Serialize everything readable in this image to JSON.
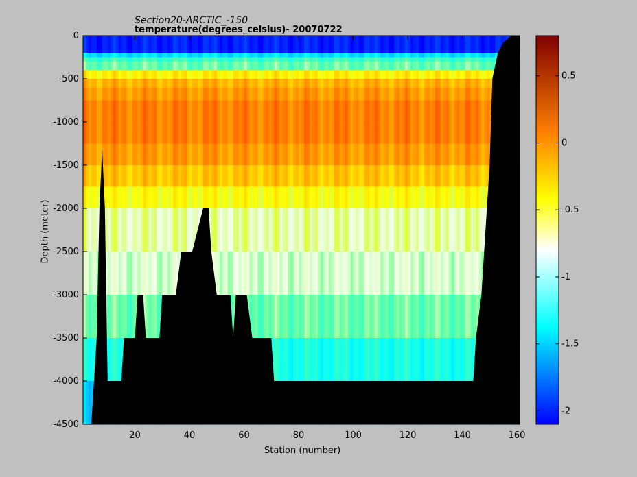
{
  "window": {
    "background": "#c0c0c0"
  },
  "chart_data": {
    "type": "heatmap",
    "title": "Section20-ARCTIC_-150",
    "subtitle": "temperature(degrees_celsius)- 20070722",
    "xlabel": "Station (number)",
    "ylabel": "Depth (meter)",
    "xlim": [
      1,
      161
    ],
    "ylim": [
      -4500,
      0
    ],
    "x_ticks": [
      "20",
      "40",
      "60",
      "80",
      "100",
      "120",
      "140",
      "160"
    ],
    "x_tick_values": [
      20,
      40,
      60,
      80,
      100,
      120,
      140,
      160
    ],
    "y_ticks": [
      "0",
      "-500",
      "-1000",
      "-1500",
      "-2000",
      "-2500",
      "-3000",
      "-3500",
      "-4000",
      "-4500"
    ],
    "y_tick_values": [
      0,
      -500,
      -1000,
      -1500,
      -2000,
      -2500,
      -3000,
      -3500,
      -4000,
      -4500
    ],
    "colorbar": {
      "colormap": "jet",
      "clim": [
        -2.1,
        0.8
      ],
      "ticks": [
        "-2",
        "-1.5",
        "-1",
        "-0.5",
        "0",
        "0.5"
      ],
      "tick_values": [
        -2,
        -1.5,
        -1,
        -0.5,
        0,
        0.5
      ]
    },
    "land_color": "#000000",
    "depth_levels": [
      0,
      100,
      200,
      250,
      300,
      400,
      500,
      600,
      750,
      1000,
      1250,
      1500,
      1750,
      2000,
      2500,
      3000,
      3500,
      4000,
      4500
    ],
    "bottom_profile": {
      "stations": [
        1,
        4,
        5,
        6,
        7,
        8,
        9,
        10,
        15,
        16,
        20,
        21,
        23,
        24,
        29,
        30,
        31,
        35,
        37,
        40,
        41,
        45,
        47,
        48,
        50,
        55,
        56,
        57,
        61,
        63,
        64,
        70,
        71,
        144,
        145,
        147,
        148,
        150,
        151,
        153,
        155,
        158,
        161
      ],
      "depths": [
        -4500,
        -4500,
        -4000,
        -3500,
        -2000,
        -1300,
        -2000,
        -4000,
        -4000,
        -3500,
        -3500,
        -3000,
        -3000,
        -3500,
        -3500,
        -3000,
        -3000,
        -3000,
        -2500,
        -2500,
        -2500,
        -2000,
        -2000,
        -2500,
        -3000,
        -3000,
        -3500,
        -3000,
        -3000,
        -3500,
        -3500,
        -3500,
        -4000,
        -4000,
        -3500,
        -3000,
        -2500,
        -1500,
        -500,
        -200,
        -80,
        0,
        0
      ]
    },
    "temperature_profile": {
      "depths": [
        0,
        100,
        200,
        250,
        300,
        400,
        500,
        750,
        1000,
        1250,
        1500,
        1750,
        2000,
        2500,
        3000,
        3500,
        4000,
        4500
      ],
      "values": [
        -1.6,
        -1.7,
        -1.6,
        -0.6,
        -1.1,
        -0.4,
        -0.1,
        0.05,
        0.1,
        0.05,
        -0.05,
        -0.2,
        -0.4,
        -0.55,
        -0.65,
        -0.85,
        -1.05,
        -1.3
      ]
    }
  }
}
